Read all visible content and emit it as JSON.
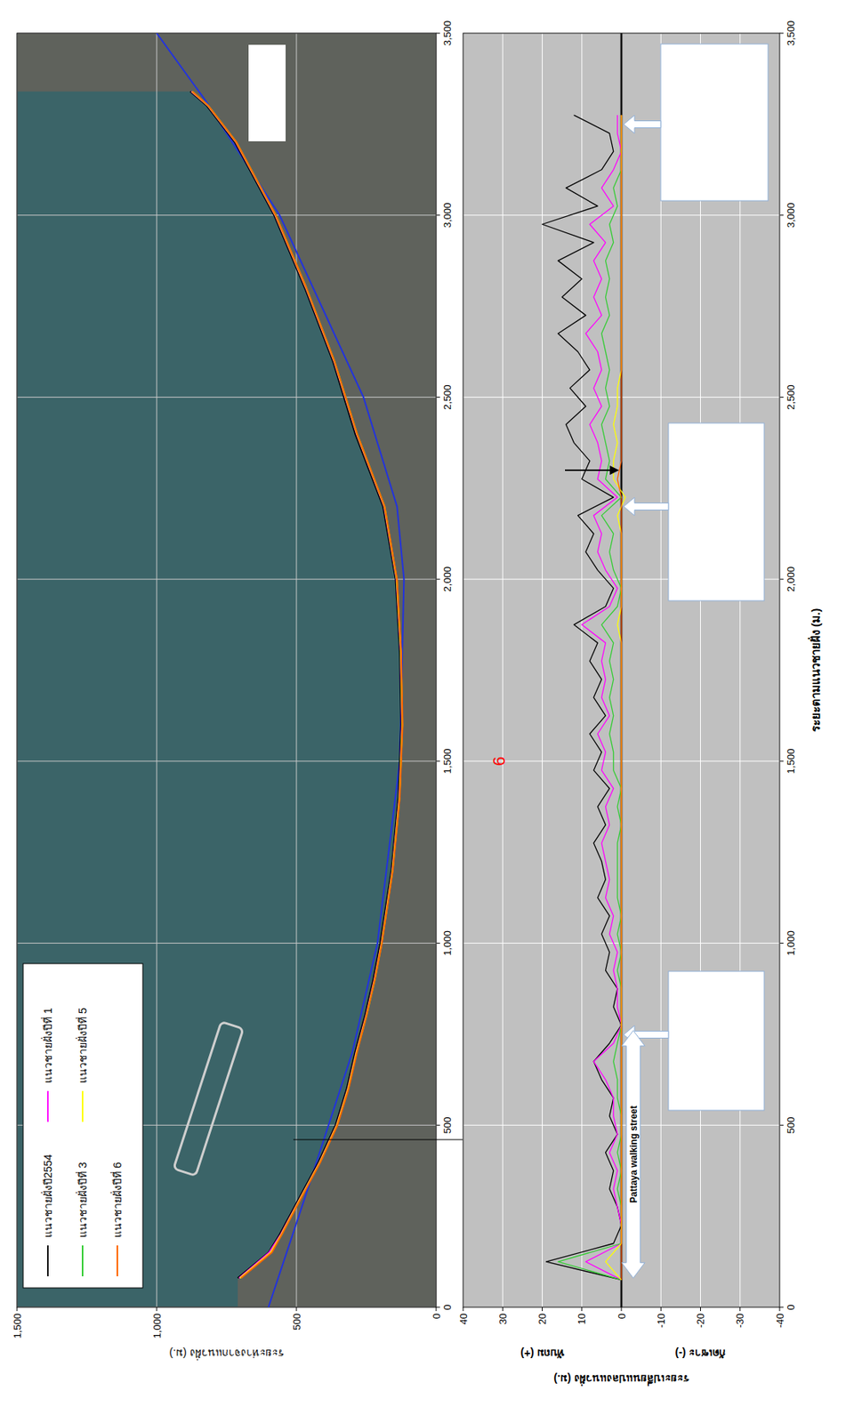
{
  "chart_data": [
    {
      "type": "line",
      "y_label": "ระยะห่างจากแนวฝั่ง (ม.)",
      "xlim": [
        0,
        3500
      ],
      "xticks": [
        0,
        500,
        {
          "value": 1000,
          "label": "1,000"
        },
        {
          "value": 1500,
          "label": "1,500"
        },
        {
          "value": 2000,
          "label": "2,000"
        },
        {
          "value": 2500,
          "label": "2,500"
        },
        {
          "value": 3000,
          "label": "3,000"
        },
        {
          "value": 3500,
          "label": "3,500"
        }
      ],
      "ylim": [
        0,
        1500
      ],
      "yticks": [
        0,
        500,
        {
          "value": 1000,
          "label": "1,000"
        },
        {
          "value": 1500,
          "label": "1,500"
        }
      ],
      "grid": true,
      "legend": "top-left",
      "x": [
        80,
        150,
        200,
        300,
        400,
        500,
        600,
        700,
        800,
        900,
        1000,
        1200,
        1400,
        1600,
        1800,
        2000,
        2200,
        2400,
        2600,
        2800,
        3000,
        3200,
        3300,
        3340
      ],
      "series": [
        {
          "name": "แนวชายฝั่งปี2554",
          "color": "#000000",
          "values": [
            710,
            600,
            560,
            490,
            420,
            360,
            320,
            290,
            255,
            225,
            200,
            160,
            135,
            125,
            130,
            145,
            190,
            290,
            370,
            470,
            580,
            720,
            820,
            880
          ]
        },
        {
          "name": "แนวชายฝั่งปีที่ 1",
          "color": "#ff00ff",
          "values": [
            705,
            598,
            556,
            486,
            416,
            356,
            316,
            286,
            251,
            221,
            196,
            157,
            132,
            122,
            127,
            142,
            186,
            285,
            366,
            466,
            576,
            716,
            816,
            876
          ]
        },
        {
          "name": "แนวชายฝั่งปีที่ 3",
          "color": "#33cc33",
          "values": [
            700,
            590,
            552,
            484,
            414,
            354,
            314,
            284,
            249,
            219,
            195,
            156,
            131,
            121,
            126,
            141,
            184,
            283,
            364,
            464,
            574,
            714,
            814,
            872
          ]
        },
        {
          "name": "แนวชายฝั่งปีที่ 5",
          "color": "#ffff00",
          "values": [
            702,
            592,
            554,
            485,
            415,
            355,
            315,
            285,
            250,
            220,
            195,
            156,
            131,
            121,
            126,
            141,
            185,
            284,
            365,
            465,
            575,
            715,
            815,
            874
          ]
        },
        {
          "name": "แนวชายฝั่งปีที่ 6",
          "color": "#ff6600",
          "values": [
            698,
            588,
            552,
            483,
            413,
            353,
            313,
            283,
            249,
            219,
            194,
            155,
            130,
            120,
            125,
            140,
            184,
            283,
            364,
            464,
            574,
            714,
            814,
            872
          ]
        },
        {
          "color": "#2233dd",
          "x": [
            0,
            300,
            700,
            1000,
            1500,
            2000,
            2200,
            2500,
            3000,
            3320,
            3500
          ],
          "values": [
            600,
            470,
            300,
            210,
            130,
            115,
            140,
            260,
            560,
            830,
            1000
          ]
        }
      ]
    },
    {
      "type": "line",
      "x_label": "ระยะตามแนวชายฝั่ง (ม.)",
      "y_label": "ระยะเปลี่ยนแปลงแนวฝั่ง (ม.)",
      "y_label_positive": "ทับถม (+)",
      "y_label_negative": "กัดเซาะ (-)",
      "xlim": [
        0,
        3500
      ],
      "xticks": [
        0,
        500,
        {
          "value": 1000,
          "label": "1,000"
        },
        {
          "value": 1500,
          "label": "1,500"
        },
        {
          "value": 2000,
          "label": "2,000"
        },
        {
          "value": 2500,
          "label": "2,500"
        },
        {
          "value": 3000,
          "label": "3,000"
        },
        {
          "value": 3500,
          "label": "3,500"
        }
      ],
      "ylim": [
        -40,
        40
      ],
      "yticks": [
        -40,
        -30,
        -20,
        -10,
        0,
        10,
        20,
        30,
        40
      ],
      "grid": true,
      "annotations": [
        {
          "text": "Pattaya walking street",
          "x": [
            80,
            760
          ],
          "y": -3
        },
        {
          "text": "6",
          "x": 1500,
          "y": 31,
          "color": "#ff0000"
        }
      ],
      "x": [
        75,
        125,
        175,
        225,
        275,
        325,
        375,
        425,
        475,
        525,
        575,
        625,
        675,
        725,
        775,
        825,
        875,
        925,
        975,
        1025,
        1075,
        1125,
        1175,
        1225,
        1275,
        1325,
        1375,
        1425,
        1475,
        1525,
        1575,
        1625,
        1675,
        1725,
        1775,
        1825,
        1875,
        1925,
        1975,
        2025,
        2075,
        2125,
        2175,
        2225,
        2275,
        2325,
        2375,
        2425,
        2475,
        2525,
        2575,
        2625,
        2675,
        2725,
        2775,
        2825,
        2875,
        2925,
        2975,
        3025,
        3075,
        3125,
        3175,
        3225,
        3275
      ],
      "series": [
        {
          "color": "#000000",
          "values": [
            0,
            19,
            2,
            0,
            1,
            3,
            2,
            4,
            1,
            3,
            2,
            5,
            7,
            3,
            0,
            2,
            1,
            4,
            3,
            5,
            3,
            6,
            4,
            5,
            7,
            4,
            6,
            3,
            7,
            5,
            8,
            4,
            7,
            5,
            8,
            6,
            12,
            4,
            2,
            6,
            9,
            7,
            11,
            2,
            10,
            8,
            12,
            14,
            9,
            13,
            8,
            11,
            16,
            9,
            15,
            10,
            16,
            7,
            20,
            6,
            14,
            5,
            2,
            3,
            12
          ]
        },
        {
          "color": "#ff00ff",
          "values": [
            0,
            9,
            0,
            0,
            1,
            2,
            1,
            3,
            1,
            2,
            2,
            4,
            7,
            2,
            0,
            1,
            1,
            2,
            1,
            3,
            2,
            4,
            3,
            4,
            5,
            3,
            4,
            2,
            5,
            4,
            6,
            3,
            5,
            4,
            5,
            4,
            10,
            3,
            1,
            4,
            6,
            5,
            7,
            1,
            6,
            5,
            6,
            8,
            5,
            7,
            5,
            6,
            9,
            5,
            7,
            5,
            7,
            4,
            8,
            2,
            5,
            2,
            0,
            1,
            1
          ]
        },
        {
          "color": "#33cc33",
          "values": [
            0,
            16,
            0,
            0,
            0,
            1,
            0,
            1,
            0,
            0,
            1,
            1,
            2,
            1,
            0,
            0,
            0,
            1,
            0,
            1,
            0,
            1,
            1,
            1,
            1,
            0,
            1,
            0,
            2,
            2,
            3,
            2,
            3,
            2,
            3,
            2,
            5,
            1,
            0,
            2,
            3,
            2,
            5,
            0,
            4,
            3,
            4,
            5,
            3,
            4,
            3,
            4,
            5,
            3,
            4,
            3,
            4,
            2,
            3,
            1,
            2,
            0,
            0,
            0,
            0
          ]
        },
        {
          "color": "#ffff00",
          "values": [
            0,
            4,
            0,
            0,
            0,
            0,
            0,
            0,
            0,
            0,
            0,
            0,
            0,
            0,
            0,
            0,
            0,
            0,
            0,
            0,
            0,
            0,
            0,
            0,
            0,
            0,
            0,
            0,
            0,
            0,
            0,
            0,
            0,
            0,
            0,
            0,
            1,
            0,
            0,
            0,
            0,
            0,
            1,
            -1,
            2,
            2,
            1,
            2,
            1,
            1,
            0,
            0,
            0,
            0,
            0,
            0,
            0,
            0,
            0,
            0,
            0,
            0,
            0,
            0,
            0
          ]
        },
        {
          "color": "#ff6600",
          "values": [
            0,
            0,
            0,
            0,
            0,
            0,
            0,
            0,
            0,
            0,
            0,
            0,
            0,
            0,
            0,
            0,
            0,
            0,
            0,
            0,
            0,
            0,
            0,
            0,
            0,
            0,
            0,
            0,
            0,
            0,
            0,
            0,
            0,
            0,
            0,
            0,
            0,
            0,
            0,
            0,
            0,
            0,
            0,
            0,
            1,
            0,
            0,
            0,
            0,
            0,
            0,
            0,
            0,
            0,
            0,
            0,
            0,
            0,
            0,
            0,
            0,
            0,
            0,
            0,
            0
          ]
        }
      ]
    }
  ]
}
